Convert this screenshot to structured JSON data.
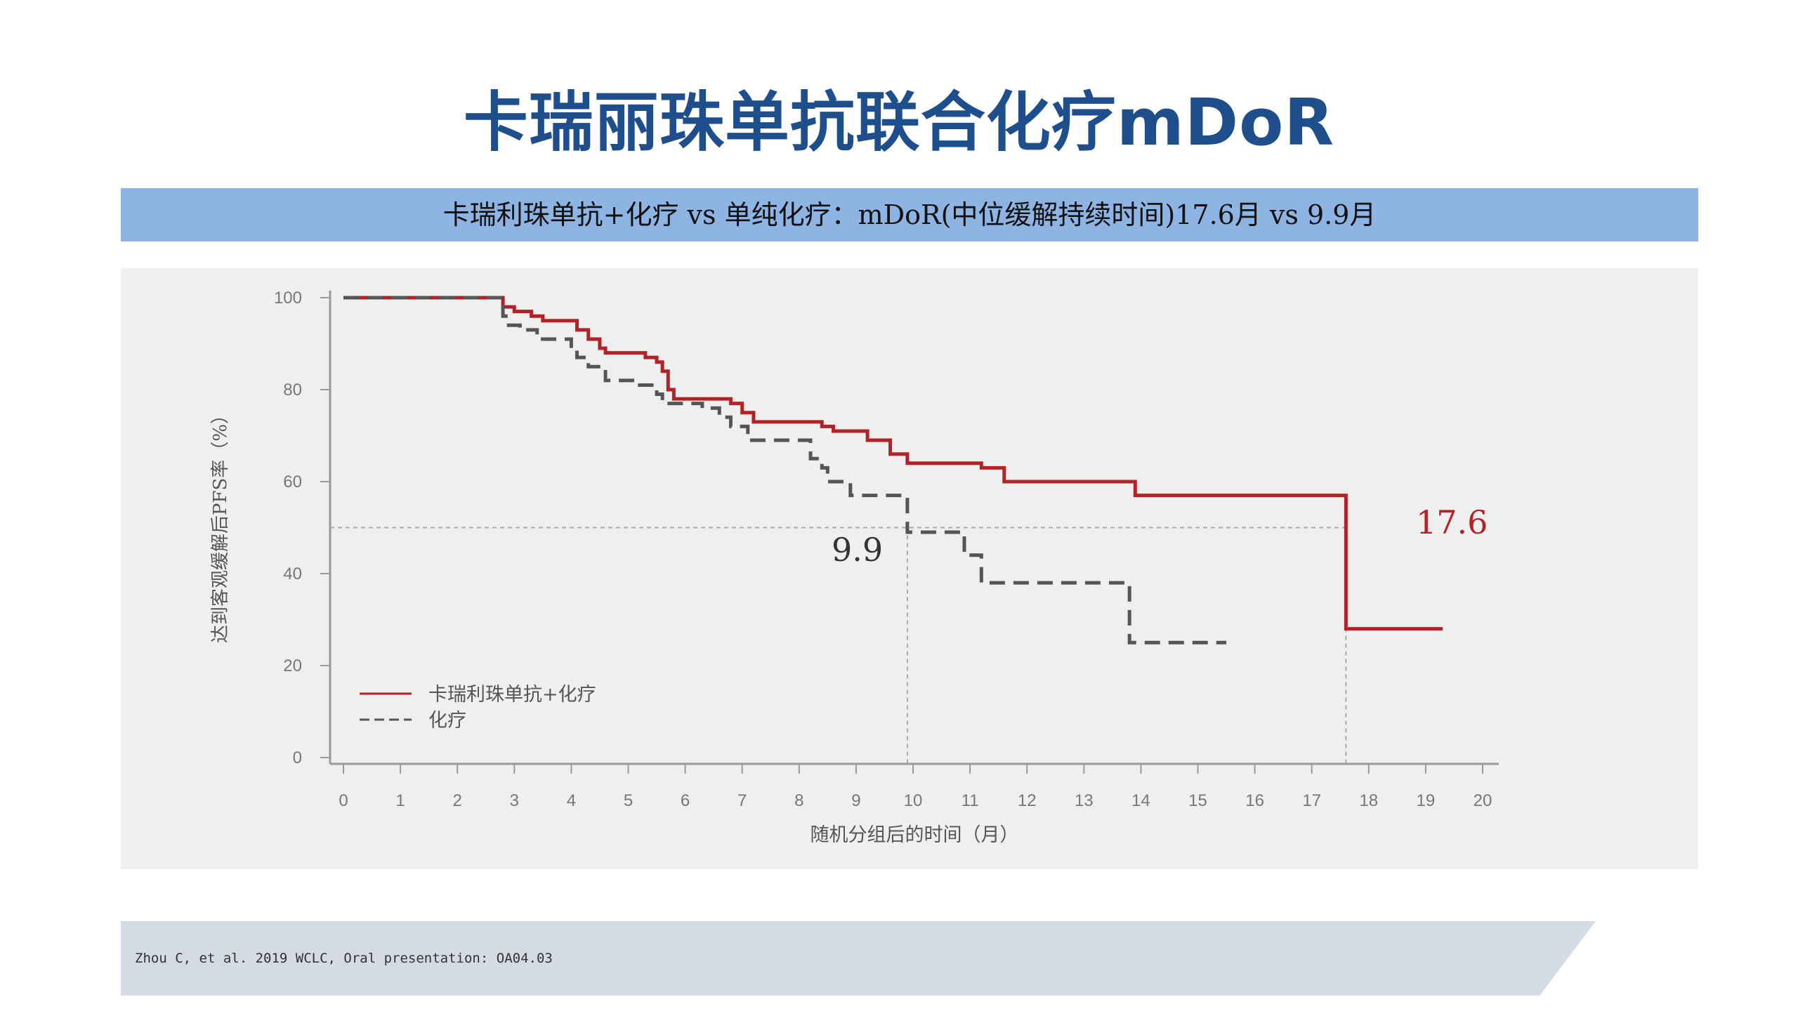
{
  "title": "卡瑞丽珠单抗联合化疗mDoR",
  "subtitle_band": "卡瑞利珠单抗+化疗 vs 单纯化疗：mDoR(中位缓解持续时间)17.6月 vs 9.9月",
  "footer": "Zhou C, et al. 2019 WCLC, Oral presentation: OA04.03",
  "colors": {
    "title": "#1f4e8c",
    "band": "#8eb4e3",
    "combo": "#b22226",
    "chemo": "#555555"
  },
  "chart_data": {
    "type": "line",
    "xlabel": "随机分组后的时间（月）",
    "ylabel": "达到客观缓解后PFS率（%）",
    "xlim": [
      0,
      20
    ],
    "ylim": [
      0,
      100
    ],
    "xticks": [
      0,
      1,
      2,
      3,
      4,
      5,
      6,
      7,
      8,
      9,
      10,
      11,
      12,
      13,
      14,
      15,
      16,
      17,
      18,
      19,
      20
    ],
    "yticks": [
      0,
      20,
      40,
      60,
      80,
      100
    ],
    "legend_position": "bottom-left",
    "median_line": 50,
    "series": [
      {
        "name": "卡瑞利珠单抗+化疗",
        "style": "solid",
        "median": 17.6,
        "median_label": "17.6",
        "steps": [
          [
            0,
            100
          ],
          [
            2.8,
            98
          ],
          [
            3.0,
            97
          ],
          [
            3.3,
            96
          ],
          [
            3.5,
            95
          ],
          [
            4.1,
            93
          ],
          [
            4.3,
            91
          ],
          [
            4.5,
            89
          ],
          [
            4.6,
            88
          ],
          [
            5.3,
            87
          ],
          [
            5.5,
            86
          ],
          [
            5.6,
            84
          ],
          [
            5.7,
            80
          ],
          [
            5.8,
            78
          ],
          [
            6.8,
            77
          ],
          [
            7.0,
            75
          ],
          [
            7.2,
            73
          ],
          [
            8.4,
            72
          ],
          [
            8.6,
            71
          ],
          [
            9.2,
            69
          ],
          [
            9.6,
            66
          ],
          [
            9.9,
            64
          ],
          [
            11.2,
            63
          ],
          [
            11.6,
            60
          ],
          [
            13.9,
            57
          ],
          [
            17.6,
            28
          ],
          [
            19.3,
            28
          ]
        ]
      },
      {
        "name": "化疗",
        "style": "dashed",
        "median": 9.9,
        "median_label": "9.9",
        "steps": [
          [
            0,
            100
          ],
          [
            2.8,
            96
          ],
          [
            2.9,
            94
          ],
          [
            3.1,
            93
          ],
          [
            3.4,
            91
          ],
          [
            4.0,
            89
          ],
          [
            4.1,
            87
          ],
          [
            4.3,
            85
          ],
          [
            4.6,
            82
          ],
          [
            5.2,
            81
          ],
          [
            5.5,
            79
          ],
          [
            5.6,
            77
          ],
          [
            6.3,
            76
          ],
          [
            6.6,
            74
          ],
          [
            6.8,
            72
          ],
          [
            7.1,
            69
          ],
          [
            8.2,
            65
          ],
          [
            8.4,
            63
          ],
          [
            8.5,
            60
          ],
          [
            8.9,
            57
          ],
          [
            9.9,
            49
          ],
          [
            10.9,
            44
          ],
          [
            11.2,
            38
          ],
          [
            13.8,
            25
          ],
          [
            15.5,
            25
          ]
        ]
      }
    ]
  }
}
